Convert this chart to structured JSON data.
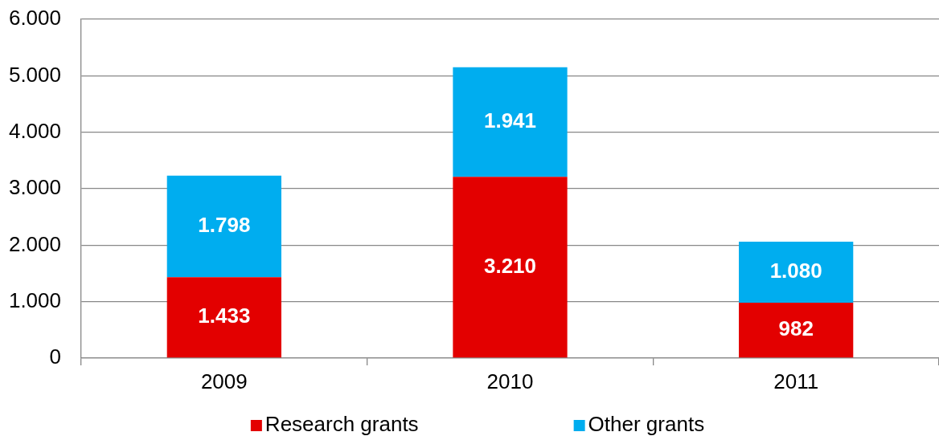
{
  "chart_data": {
    "type": "bar",
    "categories": [
      "2009",
      "2010",
      "2011"
    ],
    "series": [
      {
        "name": "Research grants",
        "color": "#e30000",
        "values": [
          1433,
          3210,
          982
        ],
        "value_labels": [
          "1.433",
          "3.210",
          "982"
        ]
      },
      {
        "name": "Other grants",
        "color": "#00adef",
        "values": [
          1798,
          1941,
          1080
        ],
        "value_labels": [
          "1.798",
          "1.941",
          "1.080"
        ]
      }
    ],
    "stacked": true,
    "ylim": [
      0,
      6000
    ],
    "yticks": [
      0,
      {
        "value": 1000,
        "label": "1.000"
      },
      {
        "value": 2000,
        "label": "2.000"
      },
      {
        "value": 3000,
        "label": "3.000"
      },
      {
        "value": 4000,
        "label": "4.000"
      },
      {
        "value": 5000,
        "label": "5.000"
      },
      {
        "value": 6000,
        "label": "6.000"
      }
    ],
    "grid": "y",
    "legend": "bottom"
  }
}
